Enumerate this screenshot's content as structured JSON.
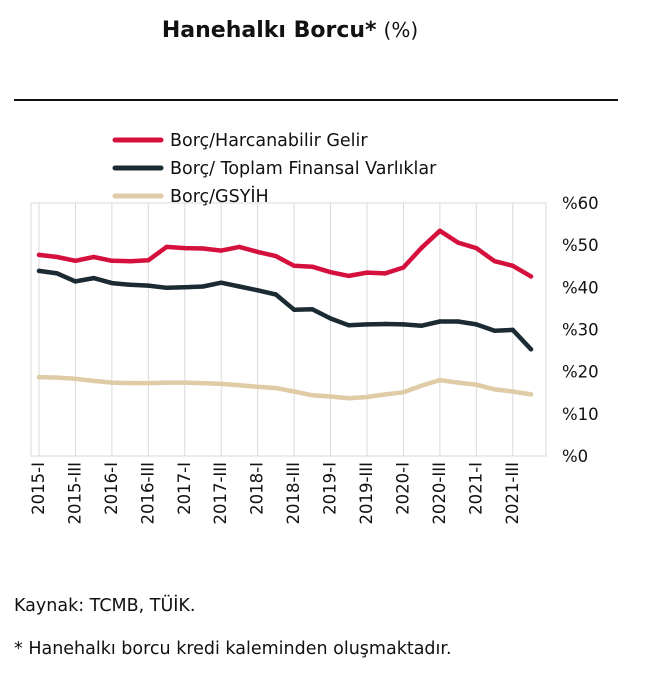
{
  "title": {
    "main": "Hanehalkı Borcu*",
    "unit": "(%)"
  },
  "source": "Kaynak: TCMB, TÜİK.",
  "footnote": "* Hanehalkı borcu kredi kaleminden oluşmaktadır.",
  "chart_data": {
    "type": "line",
    "title": "Hanehalkı Borcu* (%)",
    "xlabel": "",
    "ylabel": "",
    "ylim": [
      0,
      60
    ],
    "y_ticks": [
      0,
      10,
      20,
      30,
      40,
      50,
      60
    ],
    "y_tick_labels": [
      "%0",
      "%10",
      "%20",
      "%30",
      "%40",
      "%50",
      "%60"
    ],
    "legend_position": "top-left",
    "grid": "vertical",
    "x": [
      "2015-I",
      "2015-II",
      "2015-III",
      "2015-IV",
      "2016-I",
      "2016-II",
      "2016-III",
      "2016-IV",
      "2017-I",
      "2017-II",
      "2017-III",
      "2017-IV",
      "2018-I",
      "2018-II",
      "2018-III",
      "2018-IV",
      "2019-I",
      "2019-II",
      "2019-III",
      "2019-IV",
      "2020-I",
      "2020-II",
      "2020-III",
      "2020-IV",
      "2021-I",
      "2021-II",
      "2021-III",
      "2021-IV"
    ],
    "x_tick_labels": [
      "2015-I",
      "2015-III",
      "2016-I",
      "2016-III",
      "2017-I",
      "2017-III",
      "2018-I",
      "2018-III",
      "2019-I",
      "2019-III",
      "2020-I",
      "2020-III",
      "2021-I",
      "2021-III"
    ],
    "series": [
      {
        "name": "Borç/Harcanabilir Gelir",
        "color": "#d5103d",
        "values": [
          47.7,
          47.2,
          46.3,
          47.2,
          46.3,
          46.2,
          46.4,
          49.6,
          49.3,
          49.2,
          48.7,
          49.6,
          48.4,
          47.4,
          45.1,
          44.9,
          43.6,
          42.7,
          43.5,
          43.3,
          44.7,
          49.4,
          53.4,
          50.6,
          49.3,
          46.2,
          45.1,
          42.6
        ]
      },
      {
        "name": "Borç/ Toplam Finansal Varlıklar",
        "color": "#1c2b33",
        "values": [
          43.9,
          43.3,
          41.4,
          42.2,
          41.0,
          40.6,
          40.4,
          39.9,
          40.0,
          40.2,
          41.1,
          40.2,
          39.3,
          38.3,
          34.7,
          34.8,
          32.6,
          31.0,
          31.2,
          31.3,
          31.2,
          30.9,
          31.9,
          31.9,
          31.2,
          29.7,
          29.9,
          25.3
        ]
      },
      {
        "name": "Borç/GSYİH",
        "color": "#dfcba6",
        "values": [
          18.7,
          18.6,
          18.3,
          17.8,
          17.4,
          17.3,
          17.3,
          17.4,
          17.4,
          17.3,
          17.1,
          16.8,
          16.4,
          16.1,
          15.3,
          14.4,
          14.1,
          13.7,
          14.0,
          14.6,
          15.1,
          16.7,
          18.0,
          17.4,
          16.9,
          15.8,
          15.3,
          14.6
        ]
      }
    ]
  }
}
